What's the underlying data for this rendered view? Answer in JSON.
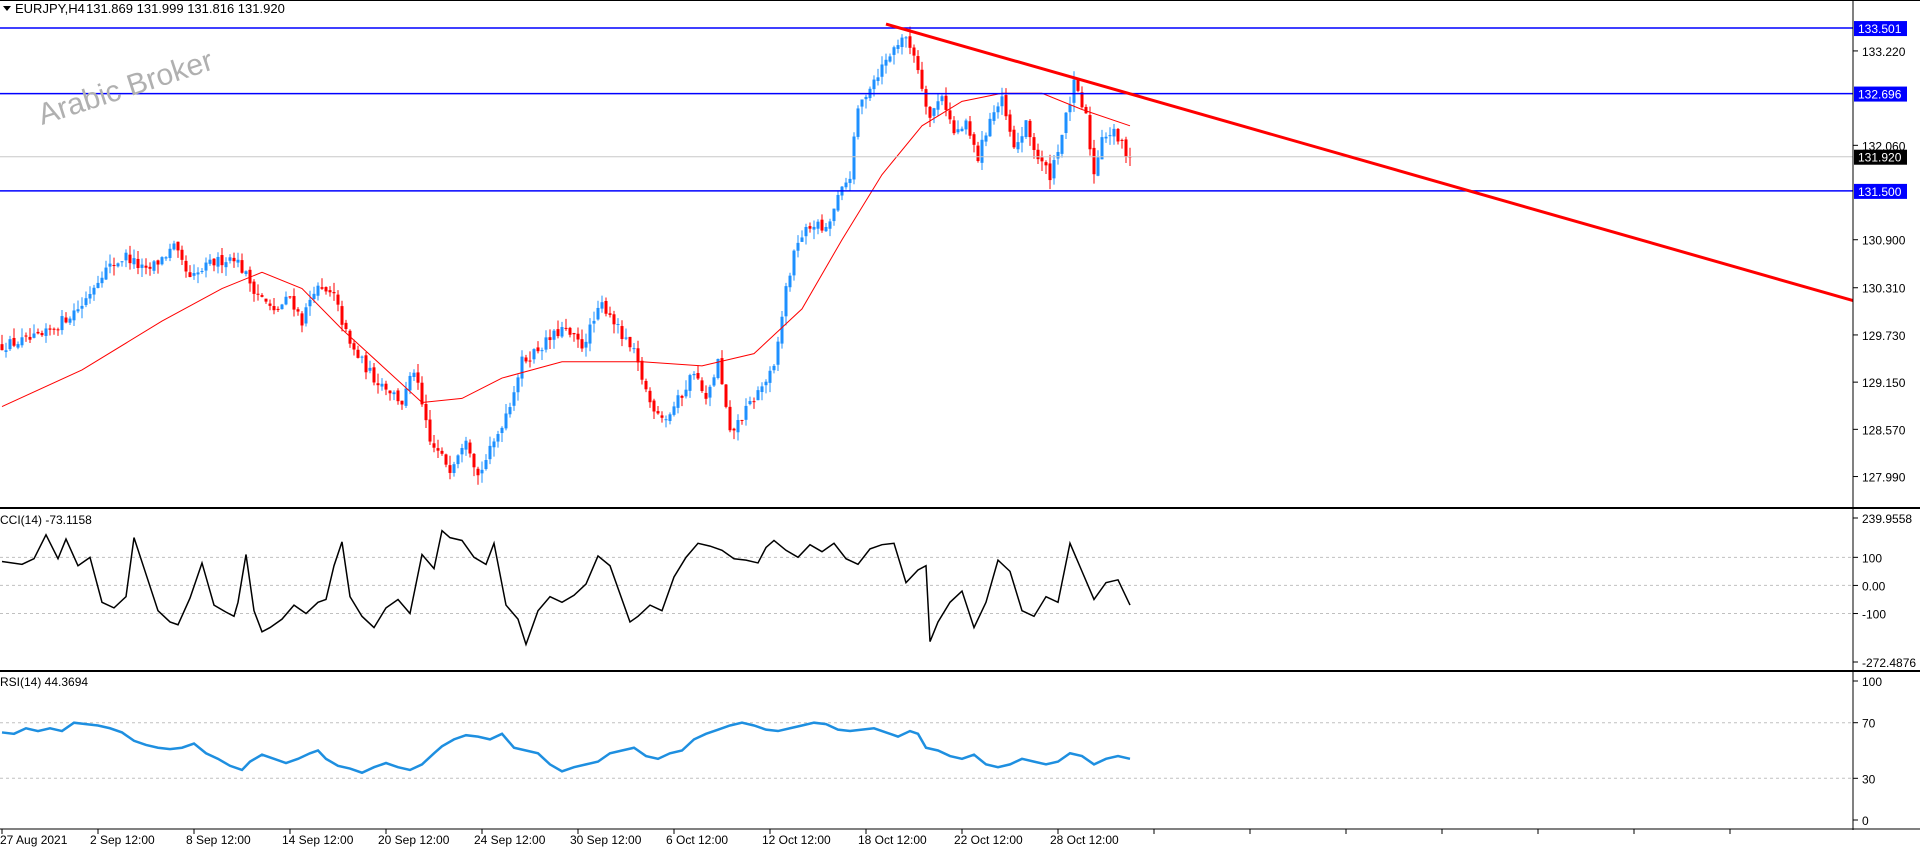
{
  "header": {
    "symbol": "EURJPY,H4",
    "ohlc": "131.869 131.999 131.816 131.920"
  },
  "watermark": "Arabic Broker",
  "colors": {
    "bull": "#1e90ff",
    "bear": "#ff0000",
    "hline": "#0000ff",
    "trend": "#ff0000",
    "ma": "#ff0000",
    "cci": "#000000",
    "rsi": "#1e8fe0",
    "price_tag": "#000000"
  },
  "price_axis": {
    "ticks": [
      "133.220",
      "132.060",
      "130.900",
      "130.310",
      "129.730",
      "129.150",
      "128.570",
      "127.990"
    ],
    "levels": [
      {
        "value": 133.501,
        "label": "133.501"
      },
      {
        "value": 132.696,
        "label": "132.696"
      },
      {
        "value": 131.5,
        "label": "131.500"
      }
    ],
    "current": {
      "value": 131.92,
      "label": "131.920"
    }
  },
  "time_axis": {
    "labels": [
      "27 Aug 2021",
      "2 Sep 12:00",
      "8 Sep 12:00",
      "14 Sep 12:00",
      "20 Sep 12:00",
      "24 Sep 12:00",
      "30 Sep 12:00",
      "6 Oct 12:00",
      "12 Oct 12:00",
      "18 Oct 12:00",
      "22 Oct 12:00",
      "28 Oct 12:00"
    ]
  },
  "cci_panel": {
    "title": "CCI(14) -73.1158",
    "ticks": [
      "239.9558",
      "100",
      "0.00",
      "-100",
      "-272.4876"
    ]
  },
  "rsi_panel": {
    "title": "RSI(14) 44.3694",
    "ticks": [
      "100",
      "70",
      "30",
      "0"
    ]
  },
  "chart_data": {
    "type": "candlestick",
    "symbol": "EURJPY",
    "timeframe": "H4",
    "ylim": [
      127.7,
      133.7
    ],
    "close_path": [
      [
        0,
        129.6
      ],
      [
        10,
        129.7
      ],
      [
        20,
        130.1
      ],
      [
        25,
        130.5
      ],
      [
        31,
        130.7
      ],
      [
        36,
        130.5
      ],
      [
        43,
        130.8
      ],
      [
        47,
        130.4
      ],
      [
        52,
        130.6
      ],
      [
        58,
        130.7
      ],
      [
        63,
        130.3
      ],
      [
        68,
        130.0
      ],
      [
        72,
        130.2
      ],
      [
        75,
        129.9
      ],
      [
        78,
        130.3
      ],
      [
        83,
        130.2
      ],
      [
        87,
        129.6
      ],
      [
        90,
        129.4
      ],
      [
        93,
        129.2
      ],
      [
        96,
        129.1
      ],
      [
        100,
        128.9
      ],
      [
        103,
        129.3
      ],
      [
        107,
        128.4
      ],
      [
        112,
        128.1
      ],
      [
        116,
        128.5
      ],
      [
        119,
        128.0
      ],
      [
        123,
        128.4
      ],
      [
        127,
        128.9
      ],
      [
        130,
        129.4
      ],
      [
        135,
        129.6
      ],
      [
        140,
        129.8
      ],
      [
        145,
        129.6
      ],
      [
        150,
        130.1
      ],
      [
        152,
        130.0
      ],
      [
        155,
        129.7
      ],
      [
        158,
        129.5
      ],
      [
        162,
        128.9
      ],
      [
        166,
        128.7
      ],
      [
        170,
        129.0
      ],
      [
        173,
        129.3
      ],
      [
        176,
        128.9
      ],
      [
        179,
        129.4
      ],
      [
        182,
        128.5
      ],
      [
        186,
        128.8
      ],
      [
        190,
        129.1
      ],
      [
        193,
        129.3
      ],
      [
        196,
        130.3
      ],
      [
        199,
        130.9
      ],
      [
        203,
        131.1
      ],
      [
        206,
        131.0
      ],
      [
        209,
        131.4
      ],
      [
        212,
        131.7
      ],
      [
        214,
        132.5
      ],
      [
        217,
        132.8
      ],
      [
        221,
        133.1
      ],
      [
        225,
        133.4
      ],
      [
        228,
        133.2
      ],
      [
        230,
        132.8
      ],
      [
        232,
        132.4
      ],
      [
        235,
        132.7
      ],
      [
        238,
        132.2
      ],
      [
        241,
        132.3
      ],
      [
        244,
        131.9
      ],
      [
        247,
        132.4
      ],
      [
        250,
        132.6
      ],
      [
        253,
        132.0
      ],
      [
        256,
        132.3
      ],
      [
        259,
        131.9
      ],
      [
        262,
        131.7
      ],
      [
        265,
        132.2
      ],
      [
        268,
        132.8
      ],
      [
        271,
        132.4
      ],
      [
        273,
        131.7
      ],
      [
        275,
        132.2
      ],
      [
        278,
        132.2
      ],
      [
        282,
        131.92
      ]
    ],
    "ma": [
      [
        0,
        128.85
      ],
      [
        20,
        129.3
      ],
      [
        40,
        129.9
      ],
      [
        55,
        130.3
      ],
      [
        65,
        130.5
      ],
      [
        75,
        130.3
      ],
      [
        85,
        129.8
      ],
      [
        95,
        129.35
      ],
      [
        105,
        128.9
      ],
      [
        115,
        128.95
      ],
      [
        125,
        129.2
      ],
      [
        140,
        129.4
      ],
      [
        160,
        129.4
      ],
      [
        175,
        129.35
      ],
      [
        188,
        129.5
      ],
      [
        200,
        130.05
      ],
      [
        210,
        130.9
      ],
      [
        220,
        131.7
      ],
      [
        230,
        132.3
      ],
      [
        240,
        132.6
      ],
      [
        250,
        132.7
      ],
      [
        260,
        132.7
      ],
      [
        270,
        132.5
      ],
      [
        282,
        132.3
      ]
    ],
    "cci": [
      [
        0,
        85
      ],
      [
        5,
        75
      ],
      [
        8,
        95
      ],
      [
        11,
        180
      ],
      [
        14,
        95
      ],
      [
        16,
        165
      ],
      [
        19,
        70
      ],
      [
        22,
        100
      ],
      [
        25,
        -60
      ],
      [
        28,
        -80
      ],
      [
        31,
        -40
      ],
      [
        33,
        170
      ],
      [
        36,
        40
      ],
      [
        39,
        -90
      ],
      [
        42,
        -130
      ],
      [
        44,
        -140
      ],
      [
        47,
        -45
      ],
      [
        50,
        80
      ],
      [
        53,
        -70
      ],
      [
        56,
        -95
      ],
      [
        58,
        -110
      ],
      [
        59,
        -60
      ],
      [
        61,
        110
      ],
      [
        63,
        -90
      ],
      [
        65,
        -165
      ],
      [
        67,
        -150
      ],
      [
        70,
        -120
      ],
      [
        73,
        -70
      ],
      [
        76,
        -100
      ],
      [
        79,
        -60
      ],
      [
        81,
        -50
      ],
      [
        83,
        70
      ],
      [
        85,
        155
      ],
      [
        87,
        -40
      ],
      [
        90,
        -110
      ],
      [
        93,
        -150
      ],
      [
        96,
        -80
      ],
      [
        99,
        -50
      ],
      [
        102,
        -100
      ],
      [
        105,
        110
      ],
      [
        108,
        60
      ],
      [
        110,
        195
      ],
      [
        112,
        170
      ],
      [
        115,
        160
      ],
      [
        118,
        100
      ],
      [
        121,
        75
      ],
      [
        123,
        150
      ],
      [
        126,
        -70
      ],
      [
        129,
        -120
      ],
      [
        131,
        -210
      ],
      [
        134,
        -90
      ],
      [
        137,
        -40
      ],
      [
        140,
        -60
      ],
      [
        143,
        -35
      ],
      [
        146,
        5
      ],
      [
        149,
        105
      ],
      [
        152,
        70
      ],
      [
        155,
        -50
      ],
      [
        157,
        -130
      ],
      [
        159,
        -110
      ],
      [
        162,
        -70
      ],
      [
        165,
        -90
      ],
      [
        168,
        30
      ],
      [
        171,
        100
      ],
      [
        174,
        150
      ],
      [
        177,
        140
      ],
      [
        180,
        125
      ],
      [
        183,
        95
      ],
      [
        186,
        90
      ],
      [
        189,
        80
      ],
      [
        191,
        135
      ],
      [
        193,
        160
      ],
      [
        196,
        125
      ],
      [
        199,
        100
      ],
      [
        202,
        145
      ],
      [
        205,
        120
      ],
      [
        208,
        150
      ],
      [
        211,
        95
      ],
      [
        214,
        75
      ],
      [
        217,
        130
      ],
      [
        220,
        145
      ],
      [
        223,
        150
      ],
      [
        226,
        10
      ],
      [
        229,
        55
      ],
      [
        231,
        70
      ],
      [
        232,
        -200
      ],
      [
        234,
        -130
      ],
      [
        237,
        -60
      ],
      [
        240,
        -20
      ],
      [
        243,
        -150
      ],
      [
        246,
        -60
      ],
      [
        249,
        90
      ],
      [
        252,
        50
      ],
      [
        255,
        -90
      ],
      [
        258,
        -110
      ],
      [
        261,
        -40
      ],
      [
        264,
        -60
      ],
      [
        267,
        150
      ],
      [
        270,
        50
      ],
      [
        273,
        -50
      ],
      [
        276,
        10
      ],
      [
        279,
        20
      ],
      [
        282,
        -70
      ]
    ],
    "rsi": [
      [
        0,
        63
      ],
      [
        3,
        62
      ],
      [
        6,
        66
      ],
      [
        9,
        64
      ],
      [
        12,
        66
      ],
      [
        15,
        64
      ],
      [
        18,
        70
      ],
      [
        21,
        69
      ],
      [
        24,
        68
      ],
      [
        27,
        66
      ],
      [
        30,
        63
      ],
      [
        33,
        57
      ],
      [
        36,
        54
      ],
      [
        39,
        52
      ],
      [
        42,
        51
      ],
      [
        45,
        52
      ],
      [
        48,
        55
      ],
      [
        51,
        48
      ],
      [
        54,
        44
      ],
      [
        57,
        39
      ],
      [
        60,
        36
      ],
      [
        62,
        42
      ],
      [
        65,
        47
      ],
      [
        68,
        44
      ],
      [
        71,
        41
      ],
      [
        74,
        44
      ],
      [
        77,
        48
      ],
      [
        79,
        50
      ],
      [
        81,
        44
      ],
      [
        84,
        39
      ],
      [
        87,
        37
      ],
      [
        90,
        34
      ],
      [
        93,
        38
      ],
      [
        96,
        41
      ],
      [
        99,
        38
      ],
      [
        102,
        36
      ],
      [
        105,
        40
      ],
      [
        108,
        48
      ],
      [
        110,
        53
      ],
      [
        113,
        58
      ],
      [
        116,
        61
      ],
      [
        119,
        60
      ],
      [
        122,
        58
      ],
      [
        125,
        62
      ],
      [
        128,
        52
      ],
      [
        131,
        50
      ],
      [
        134,
        48
      ],
      [
        137,
        40
      ],
      [
        140,
        35
      ],
      [
        143,
        38
      ],
      [
        146,
        40
      ],
      [
        149,
        42
      ],
      [
        152,
        48
      ],
      [
        155,
        50
      ],
      [
        158,
        52
      ],
      [
        161,
        46
      ],
      [
        164,
        44
      ],
      [
        167,
        48
      ],
      [
        170,
        50
      ],
      [
        173,
        58
      ],
      [
        176,
        62
      ],
      [
        179,
        65
      ],
      [
        182,
        68
      ],
      [
        185,
        70
      ],
      [
        188,
        68
      ],
      [
        191,
        65
      ],
      [
        194,
        64
      ],
      [
        197,
        66
      ],
      [
        200,
        68
      ],
      [
        203,
        70
      ],
      [
        206,
        69
      ],
      [
        209,
        65
      ],
      [
        212,
        64
      ],
      [
        215,
        65
      ],
      [
        218,
        66
      ],
      [
        221,
        63
      ],
      [
        224,
        60
      ],
      [
        227,
        64
      ],
      [
        229,
        62
      ],
      [
        231,
        52
      ],
      [
        234,
        50
      ],
      [
        237,
        46
      ],
      [
        240,
        44
      ],
      [
        243,
        47
      ],
      [
        246,
        40
      ],
      [
        249,
        38
      ],
      [
        252,
        40
      ],
      [
        255,
        44
      ],
      [
        258,
        42
      ],
      [
        261,
        40
      ],
      [
        264,
        42
      ],
      [
        267,
        48
      ],
      [
        270,
        46
      ],
      [
        273,
        40
      ],
      [
        276,
        44
      ],
      [
        279,
        46
      ],
      [
        282,
        44
      ]
    ],
    "trendline": {
      "from": [
        221,
        133.55
      ],
      "to": [
        475,
        129.98
      ]
    }
  }
}
